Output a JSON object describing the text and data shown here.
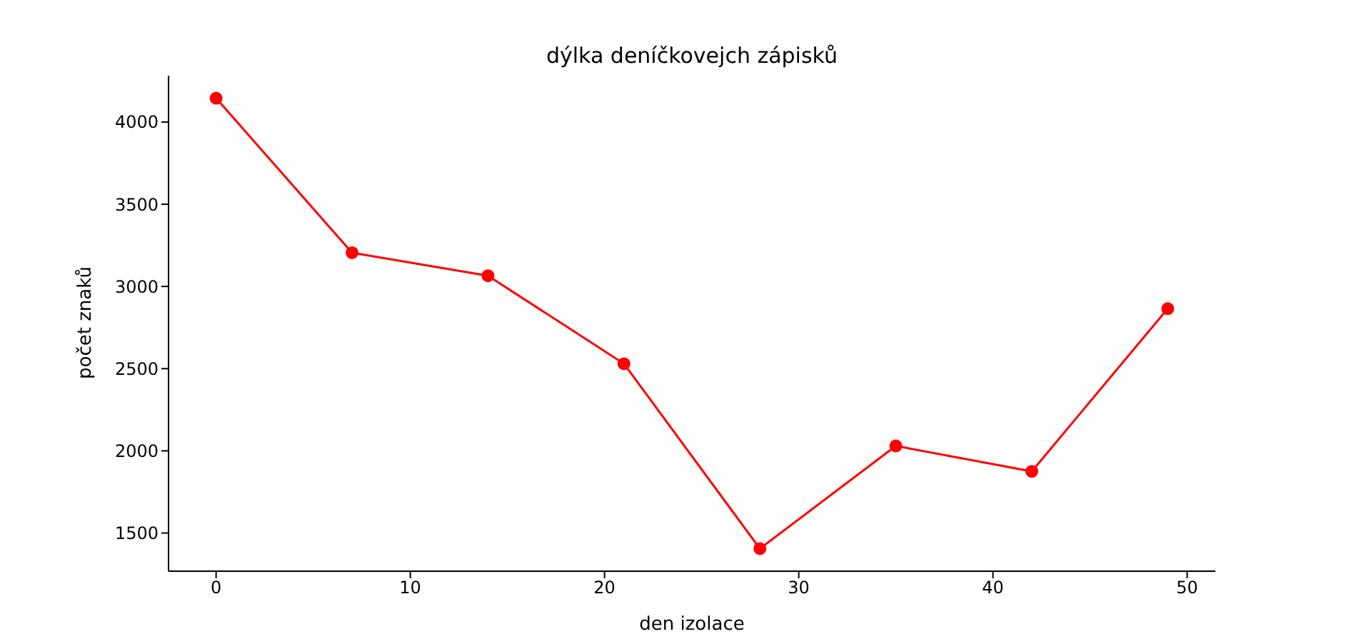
{
  "chart_data": {
    "type": "line",
    "title": "dýlka deníčkovejch zápisků",
    "xlabel": "den izolace",
    "ylabel": "počet znaků",
    "x": [
      0,
      7,
      14,
      21,
      28,
      35,
      42,
      49
    ],
    "series": [
      {
        "color": "#ff0000",
        "values": [
          4145,
          3205,
          3065,
          2530,
          1405,
          2030,
          1875,
          2865
        ]
      }
    ],
    "xlim": [
      -2.45,
      51.45
    ],
    "xticks": [
      0,
      10,
      20,
      30,
      40,
      50
    ],
    "ylim": [
      1268,
      4282
    ],
    "yticks": [
      1500,
      2000,
      2500,
      3000,
      3500,
      4000
    ],
    "grid": false,
    "legend": false,
    "marker": "circle",
    "line_style": "solid"
  }
}
